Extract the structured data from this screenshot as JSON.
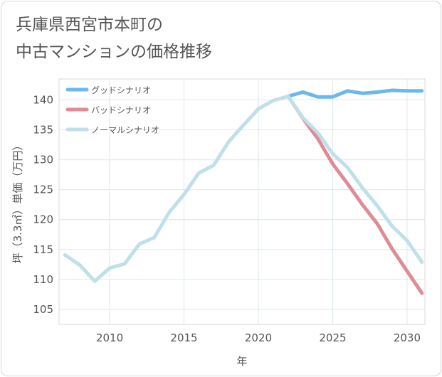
{
  "chart_data": {
    "type": "line",
    "title_lines": [
      "兵庫県西宮市本町の",
      "中古マンションの価格推移"
    ],
    "xlabel": "年",
    "ylabel": "坪（3.3㎡）単価（万円）",
    "xlim": [
      2006.6,
      2031.2
    ],
    "ylim": [
      102.5,
      143.5
    ],
    "xticks": [
      2010,
      2015,
      2020,
      2025,
      2030
    ],
    "yticks": [
      105,
      110,
      115,
      120,
      125,
      130,
      135,
      140
    ],
    "grid": true,
    "legend_position": "top-left",
    "series": [
      {
        "name": "グッドシナリオ",
        "color": "#6cb8ee",
        "x": [
          2022,
          2023,
          2024,
          2025,
          2026,
          2027,
          2028,
          2029,
          2030,
          2031
        ],
        "y": [
          140.6,
          141.3,
          140.5,
          140.5,
          141.5,
          141.1,
          141.3,
          141.6,
          141.5,
          141.5
        ]
      },
      {
        "name": "バッドシナリオ",
        "color": "#de8c95",
        "x": [
          2022,
          2023,
          2024,
          2025,
          2026,
          2027,
          2028,
          2029,
          2030,
          2031
        ],
        "y": [
          140.6,
          136.9,
          133.5,
          129.3,
          126.0,
          122.5,
          119.3,
          115.1,
          111.4,
          107.7
        ]
      },
      {
        "name": "ノーマルシナリオ",
        "color": "#c0dfe9",
        "x": [
          2007,
          2008,
          2009,
          2010,
          2011,
          2012,
          2013,
          2014,
          2015,
          2016,
          2017,
          2018,
          2019,
          2020,
          2021,
          2022,
          2023,
          2024,
          2025,
          2026,
          2027,
          2028,
          2029,
          2030,
          2031
        ],
        "y": [
          114.1,
          112.4,
          109.7,
          111.9,
          112.6,
          115.9,
          117.0,
          121.2,
          124.2,
          127.8,
          129.1,
          133.0,
          135.8,
          138.5,
          139.9,
          140.6,
          137.0,
          134.5,
          131.0,
          128.7,
          125.3,
          122.3,
          118.9,
          116.5,
          112.9
        ]
      }
    ]
  }
}
